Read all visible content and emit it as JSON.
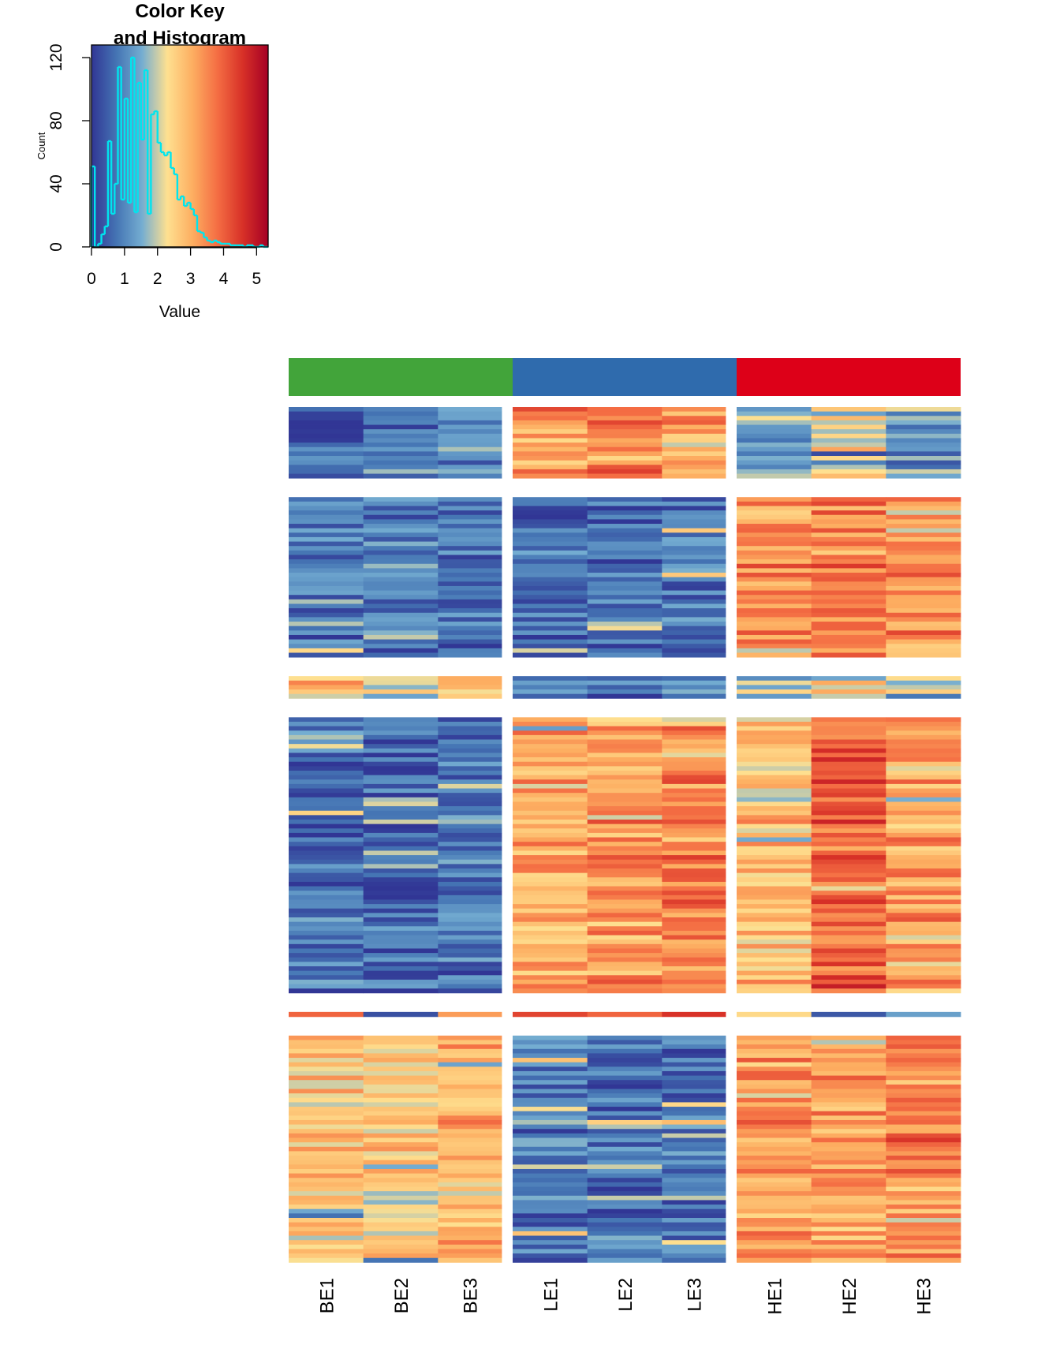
{
  "color_key": {
    "title_line1": "Color Key",
    "title_line2": "and Histogram",
    "xlabel": "Value",
    "ylabel": "Count",
    "xticks": [
      "0",
      "1",
      "2",
      "3",
      "4",
      "5"
    ],
    "yticks": [
      "0",
      "40",
      "80",
      "120"
    ],
    "value_range": [
      0,
      5.35
    ],
    "count_range": [
      0,
      128
    ],
    "palette": [
      "#313695",
      "#4575b4",
      "#74add1",
      "#fee090",
      "#fdae61",
      "#f46d43",
      "#d73027",
      "#a50026"
    ],
    "histogram_color": "#00e5ee"
  },
  "chart_data": [
    {
      "type": "bar",
      "title": "Color Key and Histogram",
      "xlabel": "Value",
      "ylabel": "Count",
      "xlim": [
        0,
        5.35
      ],
      "ylim": [
        0,
        128
      ],
      "bin_width": 0.1,
      "bin_starts": [
        0.0,
        0.1,
        0.2,
        0.3,
        0.4,
        0.5,
        0.6,
        0.7,
        0.8,
        0.9,
        1.0,
        1.1,
        1.2,
        1.3,
        1.4,
        1.5,
        1.6,
        1.7,
        1.8,
        1.9,
        2.0,
        2.1,
        2.2,
        2.3,
        2.4,
        2.5,
        2.6,
        2.7,
        2.8,
        2.9,
        3.0,
        3.1,
        3.2,
        3.3,
        3.4,
        3.5,
        3.6,
        3.7,
        3.8,
        3.9,
        4.0,
        4.1,
        4.2,
        4.3,
        4.4,
        4.5,
        4.6,
        4.7,
        4.8,
        4.9,
        5.0,
        5.1,
        5.2,
        5.3
      ],
      "counts": [
        51,
        0,
        2,
        8,
        13,
        67,
        21,
        40,
        114,
        30,
        94,
        28,
        120,
        22,
        104,
        68,
        112,
        21,
        84,
        86,
        66,
        60,
        58,
        60,
        50,
        46,
        30,
        32,
        26,
        28,
        24,
        20,
        10,
        9,
        6,
        4,
        3,
        4,
        3,
        2,
        2,
        2,
        1,
        1,
        1,
        1,
        0,
        1,
        1,
        0,
        0,
        1,
        0,
        0
      ]
    },
    {
      "type": "heatmap",
      "columns": [
        "BE1",
        "BE2",
        "BE3",
        "LE1",
        "LE2",
        "LE3",
        "HE1",
        "HE2",
        "HE3"
      ],
      "column_groups": [
        {
          "columns": [
            "BE1",
            "BE2",
            "BE3"
          ],
          "color": "#42a43a"
        },
        {
          "columns": [
            "LE1",
            "LE2",
            "LE3"
          ],
          "color": "#2f6bad"
        },
        {
          "columns": [
            "HE1",
            "HE2",
            "HE3"
          ],
          "color": "#dd0018"
        }
      ],
      "value_scale": [
        0,
        5.35
      ],
      "row_blocks": [
        {
          "rows": 16,
          "levels": [
            [
              0.4,
              0.8,
              1.0
            ],
            [
              3.3,
              3.6,
              3.2
            ],
            [
              1.4,
              2.2,
              1.2
            ]
          ]
        },
        {
          "rows": 36,
          "levels": [
            [
              0.8,
              0.8,
              0.7
            ],
            [
              0.7,
              0.6,
              0.9
            ],
            [
              3.4,
              3.6,
              3.3
            ]
          ]
        },
        {
          "rows": 5,
          "levels": [
            [
              2.6,
              2.2,
              2.6
            ],
            [
              0.5,
              0.4,
              1.4
            ],
            [
              1.6,
              2.2,
              2.0
            ]
          ]
        },
        {
          "rows": 62,
          "levels": [
            [
              0.7,
              0.5,
              0.8
            ],
            [
              3.1,
              3.3,
              3.6
            ],
            [
              2.8,
              4.0,
              3.3
            ]
          ]
        },
        {
          "rows": 1,
          "levels": [
            [
              3.5,
              0.3,
              3.5
            ],
            [
              3.5,
              3.2,
              4.2
            ],
            [
              1.7,
              0.6,
              1.6
            ]
          ]
        },
        {
          "rows": 51,
          "levels": [
            [
              2.7,
              2.5,
              2.9
            ],
            [
              0.9,
              0.7,
              0.8
            ],
            [
              3.4,
              3.3,
              3.5
            ]
          ]
        }
      ]
    }
  ],
  "colors": {
    "axis": "#000000",
    "divider": "#ffffff"
  }
}
